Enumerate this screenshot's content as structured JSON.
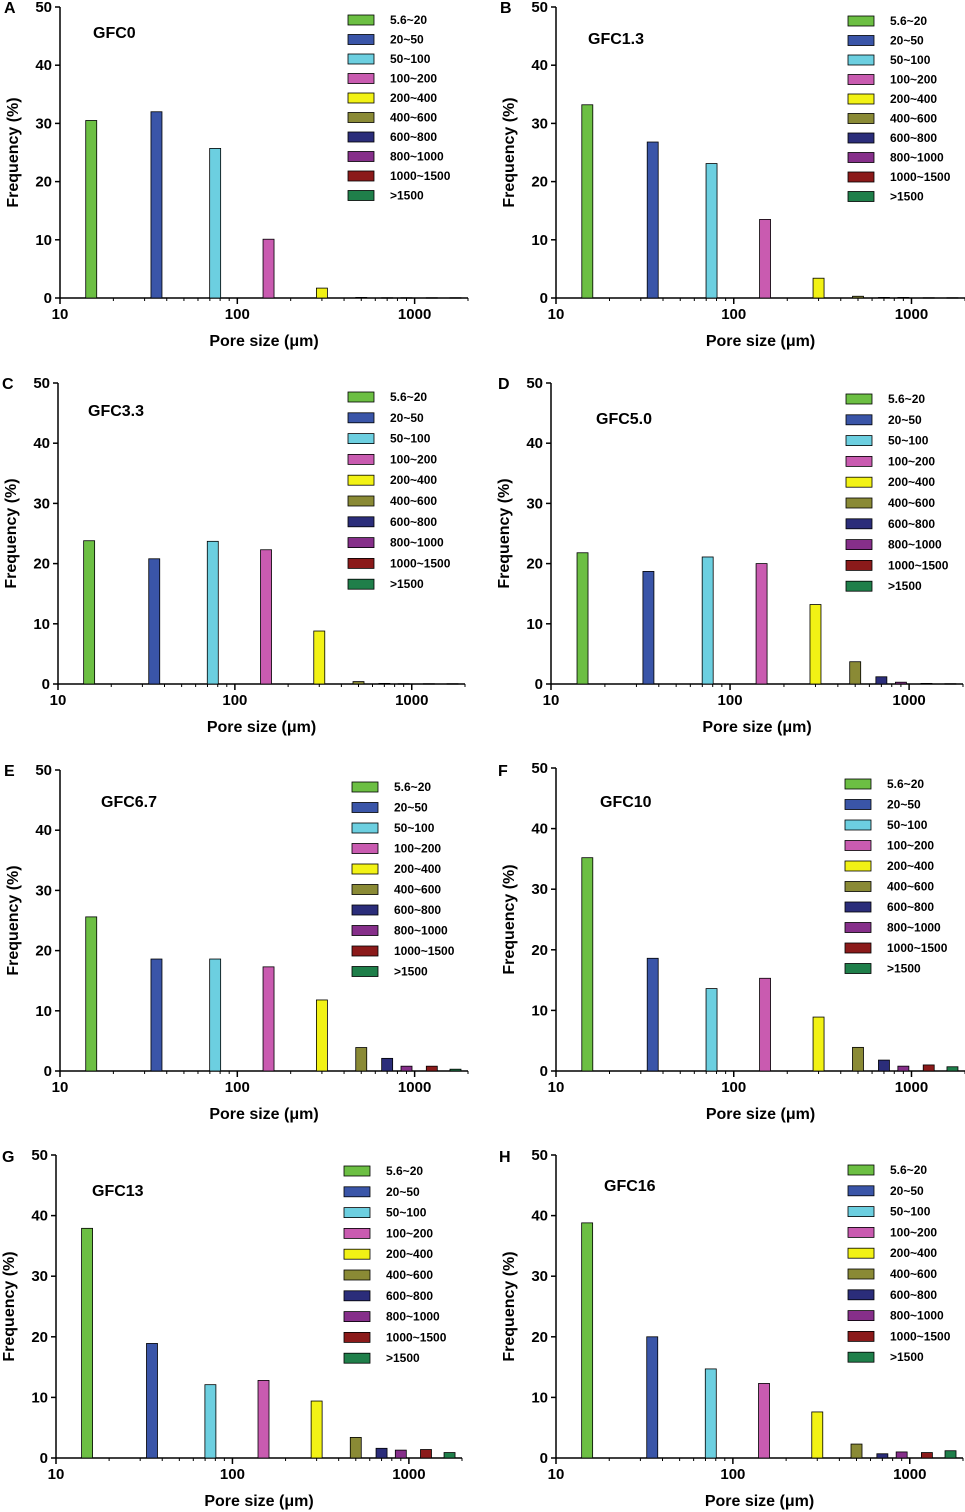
{
  "legend_labels": [
    "5.6~20",
    "20~50",
    "50~100",
    "100~200",
    "200~400",
    "400~600",
    "600~800",
    "800~1000",
    "1000~1500",
    ">1500"
  ],
  "bin_centers_um": [
    15,
    35,
    75,
    150,
    300,
    500,
    700,
    900,
    1250,
    1700
  ],
  "colors": [
    "#6cbf43",
    "#3a55a8",
    "#6ccfe0",
    "#c95bb0",
    "#f2f215",
    "#8a8a35",
    "#2b2d7a",
    "#862f8a",
    "#8b1a1a",
    "#1f7f4a"
  ],
  "chart_data": [
    {
      "panel": "A",
      "name": "GFC0",
      "type": "bar",
      "title": "GFC0",
      "xlabel": "Pore size (μm)",
      "ylabel": "Frequency (%)",
      "xscale": "log",
      "xlim": [
        10,
        2000
      ],
      "ylim": [
        0,
        50
      ],
      "yticks": [
        "0",
        "10",
        "20",
        "30",
        "40",
        "50"
      ],
      "xticks": [
        "10",
        "100",
        "1000"
      ],
      "values": [
        30.5,
        32,
        25.7,
        10.1,
        1.7,
        0.1,
        0.05,
        0.05,
        0.05,
        0.05
      ]
    },
    {
      "panel": "B",
      "name": "GFC1.3",
      "type": "bar",
      "title": "GFC1.3",
      "xlabel": "Pore size (μm)",
      "ylabel": "Frequency (%)",
      "xscale": "log",
      "xlim": [
        10,
        2000
      ],
      "ylim": [
        0,
        50
      ],
      "yticks": [
        "0",
        "10",
        "20",
        "30",
        "40",
        "50"
      ],
      "xticks": [
        "10",
        "100",
        "1000"
      ],
      "values": [
        33.2,
        26.8,
        23.1,
        13.5,
        3.4,
        0.3,
        0.1,
        0.1,
        0.05,
        0.05
      ]
    },
    {
      "panel": "C",
      "name": "GFC3.3",
      "type": "bar",
      "title": "GFC3.3",
      "xlabel": "Pore size (μm)",
      "ylabel": "Frequency (%)",
      "xscale": "log",
      "xlim": [
        10,
        2000
      ],
      "ylim": [
        0,
        50
      ],
      "yticks": [
        "0",
        "10",
        "20",
        "30",
        "40",
        "50"
      ],
      "xticks": [
        "10",
        "100",
        "1000"
      ],
      "values": [
        23.8,
        20.8,
        23.7,
        22.3,
        8.8,
        0.4,
        0.1,
        0.05,
        0.05,
        0.05
      ]
    },
    {
      "panel": "D",
      "name": "GFC5.0",
      "type": "bar",
      "title": "GFC5.0",
      "xlabel": "Pore size (μm)",
      "ylabel": "Frequency (%)",
      "xscale": "log",
      "xlim": [
        10,
        2000
      ],
      "ylim": [
        0,
        50
      ],
      "yticks": [
        "0",
        "10",
        "20",
        "30",
        "40",
        "50"
      ],
      "xticks": [
        "10",
        "100",
        "1000"
      ],
      "values": [
        21.8,
        18.7,
        21.1,
        20,
        13.2,
        3.7,
        1.2,
        0.3,
        0.1,
        0.05
      ]
    },
    {
      "panel": "E",
      "name": "GFC6.7",
      "type": "bar",
      "title": "GFC6.7",
      "xlabel": "Pore size (μm)",
      "ylabel": "Frequency (%)",
      "xscale": "log",
      "xlim": [
        10,
        2000
      ],
      "ylim": [
        0,
        50
      ],
      "yticks": [
        "0",
        "10",
        "20",
        "30",
        "40",
        "50"
      ],
      "xticks": [
        "10",
        "100",
        "1000"
      ],
      "values": [
        25.6,
        18.6,
        18.6,
        17.3,
        11.8,
        3.9,
        2.1,
        0.8,
        0.8,
        0.3
      ]
    },
    {
      "panel": "F",
      "name": "GFC10",
      "type": "bar",
      "title": "GFC10",
      "xlabel": "Pore size (μm)",
      "ylabel": "Frequency (%)",
      "xscale": "log",
      "xlim": [
        10,
        2000
      ],
      "ylim": [
        0,
        50
      ],
      "yticks": [
        "0",
        "10",
        "20",
        "30",
        "40",
        "50"
      ],
      "xticks": [
        "10",
        "100",
        "1000"
      ],
      "values": [
        35.2,
        18.6,
        13.6,
        15.3,
        8.9,
        3.9,
        1.8,
        0.8,
        1,
        0.7
      ]
    },
    {
      "panel": "G",
      "name": "GFC13",
      "type": "bar",
      "title": "GFC13",
      "xlabel": "Pore size (μm)",
      "ylabel": "Frequency (%)",
      "xscale": "log",
      "xlim": [
        10,
        2000
      ],
      "ylim": [
        0,
        50
      ],
      "yticks": [
        "0",
        "10",
        "20",
        "30",
        "40",
        "50"
      ],
      "xticks": [
        "10",
        "100",
        "1000"
      ],
      "values": [
        37.9,
        18.9,
        12.1,
        12.8,
        9.4,
        3.4,
        1.6,
        1.3,
        1.4,
        0.9
      ]
    },
    {
      "panel": "H",
      "name": "GFC16",
      "type": "bar",
      "title": "GFC16",
      "xlabel": "Pore size (μm)",
      "ylabel": "Frequency (%)",
      "xscale": "log",
      "xlim": [
        10,
        2000
      ],
      "ylim": [
        0,
        50
      ],
      "yticks": [
        "0",
        "10",
        "20",
        "30",
        "40",
        "50"
      ],
      "xticks": [
        "10",
        "100",
        "1000"
      ],
      "values": [
        38.8,
        20,
        14.7,
        12.3,
        7.6,
        2.3,
        0.7,
        1,
        0.9,
        1.2
      ]
    }
  ]
}
